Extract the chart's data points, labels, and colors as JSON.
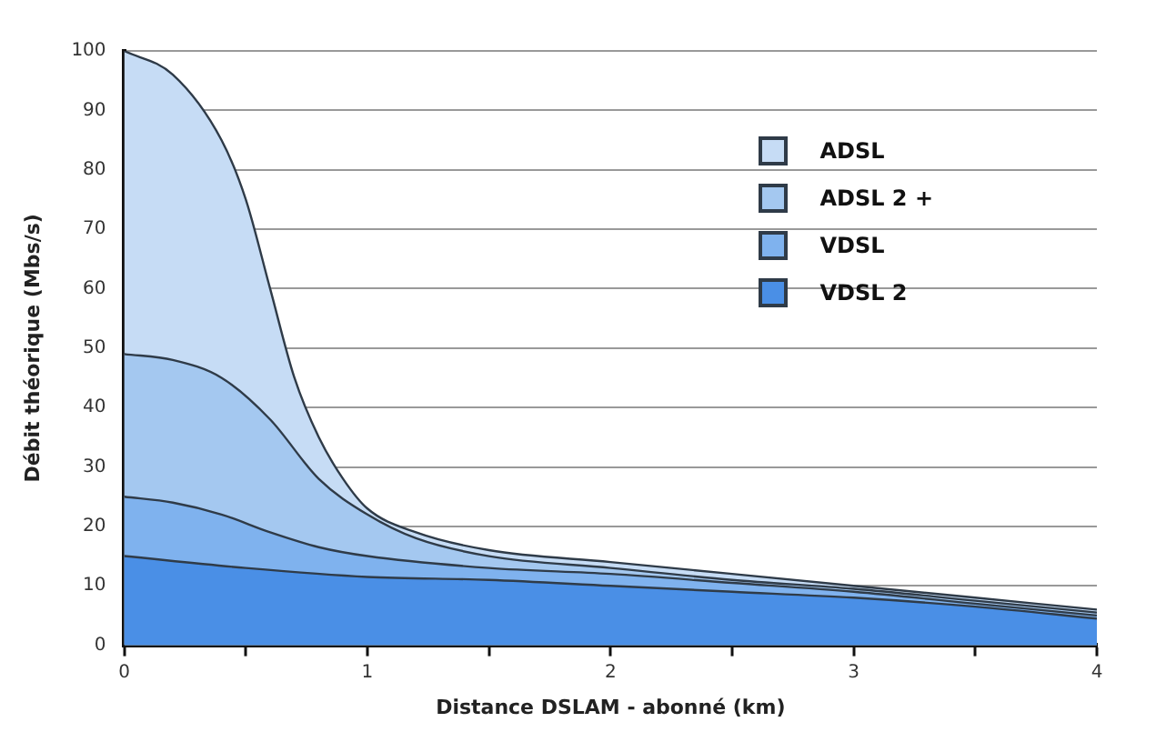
{
  "chart_data": {
    "type": "area",
    "xlabel": "Distance DSLAM - abonné (km)",
    "ylabel": "Débit théorique (Mbs/s)",
    "xlim": [
      0,
      4
    ],
    "xticks": [
      0,
      {
        "value": 0.5,
        "label": null
      },
      1,
      {
        "value": 1.5,
        "label": null
      },
      2,
      {
        "value": 2.5,
        "label": null
      },
      3,
      {
        "value": 3.5,
        "label": null
      },
      4
    ],
    "ylim": [
      0,
      100
    ],
    "yticks": [
      0,
      10,
      20,
      30,
      40,
      50,
      60,
      70,
      80,
      90,
      100
    ],
    "grid": "y",
    "legend": "top right",
    "marker": "none",
    "line_style": "solid",
    "series": [
      {
        "name": "ADSL",
        "color": "#c6dcf5",
        "x": [
          0,
          0.2,
          0.4,
          0.5,
          0.6,
          0.7,
          0.8,
          0.9,
          1,
          1.2,
          1.5,
          2,
          2.5,
          3,
          3.5,
          4
        ],
        "values": [
          100,
          96,
          85,
          75,
          60,
          45,
          35,
          28,
          23,
          19,
          16,
          14,
          12,
          10,
          8,
          6
        ]
      },
      {
        "name": "ADSL 2 +",
        "color": "#a4c8f0",
        "x": [
          0,
          0.2,
          0.4,
          0.6,
          0.8,
          1,
          1.2,
          1.5,
          2,
          2.5,
          3,
          3.5,
          4
        ],
        "values": [
          49,
          48,
          45,
          38,
          28,
          22,
          18,
          15,
          13,
          11,
          9.5,
          7.5,
          5.5
        ]
      },
      {
        "name": "VDSL",
        "color": "#7fb2ee",
        "x": [
          0,
          0.2,
          0.4,
          0.6,
          0.8,
          1,
          1.5,
          2,
          2.5,
          3,
          3.5,
          4
        ],
        "values": [
          25,
          24,
          22,
          19,
          16.5,
          15,
          13,
          12,
          10.5,
          9,
          7,
          5
        ]
      },
      {
        "name": "VDSL 2",
        "color": "#4a8fe6",
        "x": [
          0,
          0.5,
          1,
          1.5,
          2,
          2.5,
          3,
          3.5,
          4
        ],
        "values": [
          15,
          13,
          11.5,
          11,
          10,
          9,
          8,
          6.5,
          4.5
        ]
      }
    ]
  }
}
